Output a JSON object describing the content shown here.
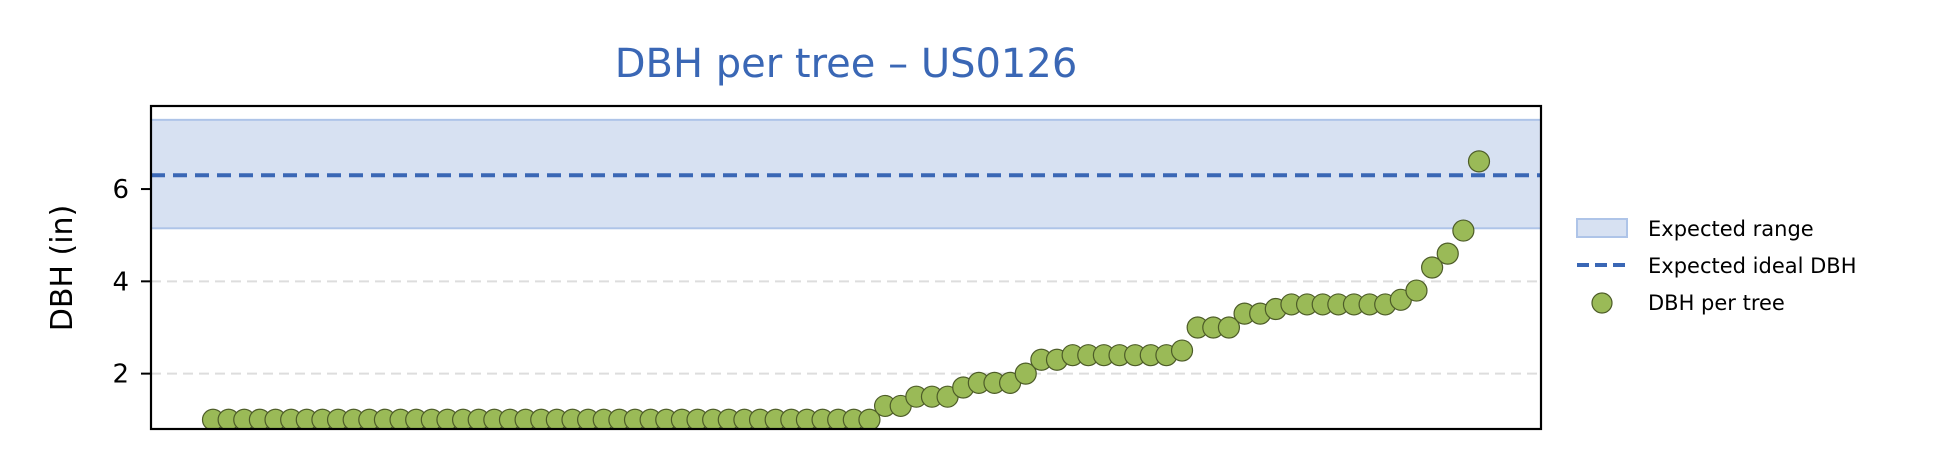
{
  "chart_data": {
    "type": "scatter",
    "title": "DBH per tree – US0126",
    "ylabel": "DBH (in)",
    "xlabel": "",
    "ylim": [
      0.8,
      7.8
    ],
    "yticks": [
      2,
      4,
      6
    ],
    "grid": "horizontal dashed",
    "legend_position": "right",
    "expected_range": {
      "low": 5.15,
      "high": 7.5,
      "label": "Expected range"
    },
    "expected_ideal": {
      "value": 6.3,
      "label": "Expected ideal DBH"
    },
    "series": [
      {
        "name": "DBH per tree",
        "values": [
          1.0,
          1.0,
          1.0,
          1.0,
          1.0,
          1.0,
          1.0,
          1.0,
          1.0,
          1.0,
          1.0,
          1.0,
          1.0,
          1.0,
          1.0,
          1.0,
          1.0,
          1.0,
          1.0,
          1.0,
          1.0,
          1.0,
          1.0,
          1.0,
          1.0,
          1.0,
          1.0,
          1.0,
          1.0,
          1.0,
          1.0,
          1.0,
          1.0,
          1.0,
          1.0,
          1.0,
          1.0,
          1.0,
          1.0,
          1.0,
          1.0,
          1.0,
          1.0,
          1.3,
          1.3,
          1.5,
          1.5,
          1.5,
          1.7,
          1.8,
          1.8,
          1.8,
          2.0,
          2.3,
          2.3,
          2.4,
          2.4,
          2.4,
          2.4,
          2.4,
          2.4,
          2.4,
          2.5,
          3.0,
          3.0,
          3.0,
          3.3,
          3.3,
          3.4,
          3.5,
          3.5,
          3.5,
          3.5,
          3.5,
          3.5,
          3.5,
          3.6,
          3.8,
          4.3,
          4.6,
          5.1,
          6.6
        ]
      }
    ],
    "colors": {
      "title": "#3a67b5",
      "range_fill": "#d7e1f2",
      "range_edge": "#aec4e8",
      "ideal_line": "#3a67b5",
      "point_fill": "#9aba57",
      "point_edge": "#4d5c28",
      "grid": "#dddddd"
    }
  }
}
